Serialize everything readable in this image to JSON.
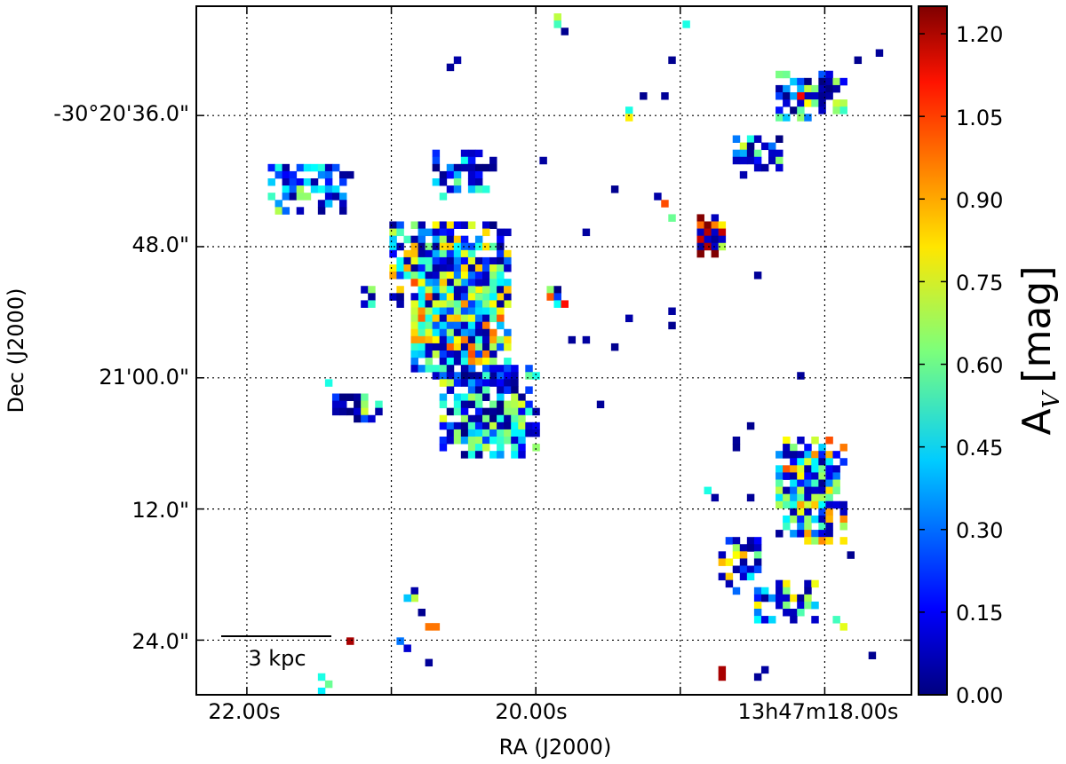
{
  "chart_data": {
    "type": "heatmap",
    "title": "",
    "xlabel": "RA (J2000)",
    "ylabel": "Dec (J2000)",
    "x_tick_labels": [
      "22.00s",
      "20.00s",
      "13h47m18.00s"
    ],
    "y_tick_labels": [
      "-30°20'36.0\"",
      "48.0\"",
      "21'00.0\"",
      "12.0\"",
      "24.0\""
    ],
    "x_grid_values_s": [
      22.0,
      21.0,
      20.0,
      19.0,
      18.0
    ],
    "y_grid_values_arcsec": [
      36.0,
      48.0,
      60.0,
      72.0,
      84.0
    ],
    "x_range_s": [
      22.35,
      17.4
    ],
    "y_range_arcsec": [
      26.0,
      89.0
    ],
    "grid": "dotted",
    "colorbar": {
      "label": "A",
      "label_sub": "V",
      "label_unit": "[mag]",
      "range": [
        0.0,
        1.25
      ],
      "tick_labels": [
        "0.00",
        "0.15",
        "0.30",
        "0.45",
        "0.60",
        "0.75",
        "0.90",
        "1.05",
        "1.20"
      ],
      "colormap": "jet"
    },
    "scale_bar": {
      "label": "3 kpc"
    },
    "map_grid": {
      "cols": 100,
      "rows": 96
    },
    "pixel_regions": [
      {
        "name": "west-clump",
        "col": 10,
        "row": 22,
        "w": 12,
        "h": 7,
        "mean": 0.35,
        "spread": 0.35,
        "fill": 0.65,
        "seed": 11
      },
      {
        "name": "central-north",
        "col": 33,
        "row": 20,
        "w": 9,
        "h": 7,
        "mean": 0.3,
        "spread": 0.35,
        "fill": 0.6,
        "seed": 23
      },
      {
        "name": "main-body-top",
        "col": 27,
        "row": 30,
        "w": 17,
        "h": 12,
        "mean": 0.45,
        "spread": 0.45,
        "fill": 0.85,
        "seed": 37
      },
      {
        "name": "main-body-core",
        "col": 30,
        "row": 38,
        "w": 14,
        "h": 14,
        "mean": 0.6,
        "spread": 0.4,
        "fill": 0.9,
        "seed": 41
      },
      {
        "name": "main-body-south",
        "col": 34,
        "row": 50,
        "w": 14,
        "h": 13,
        "mean": 0.35,
        "spread": 0.4,
        "fill": 0.8,
        "seed": 53
      },
      {
        "name": "west-small",
        "col": 19,
        "row": 54,
        "w": 7,
        "h": 4,
        "mean": 0.4,
        "spread": 0.6,
        "fill": 0.5,
        "seed": 67
      },
      {
        "name": "ne-clump",
        "col": 81,
        "row": 9,
        "w": 10,
        "h": 7,
        "mean": 0.4,
        "spread": 0.5,
        "fill": 0.7,
        "seed": 71
      },
      {
        "name": "ne-clump-2",
        "col": 75,
        "row": 18,
        "w": 7,
        "h": 6,
        "mean": 0.35,
        "spread": 0.4,
        "fill": 0.65,
        "seed": 79
      },
      {
        "name": "red-knot",
        "col": 70,
        "row": 29,
        "w": 4,
        "h": 6,
        "mean": 1.0,
        "spread": 0.4,
        "fill": 0.85,
        "seed": 83
      },
      {
        "name": "se-clump",
        "col": 81,
        "row": 60,
        "w": 10,
        "h": 15,
        "mean": 0.55,
        "spread": 0.45,
        "fill": 0.8,
        "seed": 89
      },
      {
        "name": "s-clump",
        "col": 73,
        "row": 74,
        "w": 6,
        "h": 8,
        "mean": 0.5,
        "spread": 0.5,
        "fill": 0.6,
        "seed": 97
      },
      {
        "name": "s-clump-2",
        "col": 78,
        "row": 80,
        "w": 9,
        "h": 6,
        "mean": 0.45,
        "spread": 0.45,
        "fill": 0.6,
        "seed": 101
      },
      {
        "name": "mid-small",
        "col": 49,
        "row": 39,
        "w": 3,
        "h": 3,
        "mean": 0.5,
        "spread": 0.6,
        "fill": 0.6,
        "seed": 103
      },
      {
        "name": "west-tiny",
        "col": 23,
        "row": 39,
        "w": 3,
        "h": 3,
        "mean": 0.5,
        "spread": 0.6,
        "fill": 0.7,
        "seed": 107
      }
    ],
    "isolated_pixels": [
      {
        "col": 50,
        "row": 1,
        "v": 0.7
      },
      {
        "col": 50,
        "row": 2,
        "v": 0.55
      },
      {
        "col": 51,
        "row": 3,
        "v": 0.02
      },
      {
        "col": 68,
        "row": 2,
        "v": 0.5
      },
      {
        "col": 35,
        "row": 8,
        "v": 0.03
      },
      {
        "col": 36,
        "row": 7,
        "v": 0.05
      },
      {
        "col": 66,
        "row": 7,
        "v": 0.02
      },
      {
        "col": 92,
        "row": 7,
        "v": 0.02
      },
      {
        "col": 95,
        "row": 6,
        "v": 0.03
      },
      {
        "col": 62,
        "row": 12,
        "v": 0.02
      },
      {
        "col": 65,
        "row": 12,
        "v": 0.03
      },
      {
        "col": 60,
        "row": 14,
        "v": 0.5
      },
      {
        "col": 60,
        "row": 15,
        "v": 0.8
      },
      {
        "col": 84,
        "row": 12,
        "v": 1.1
      },
      {
        "col": 48,
        "row": 21,
        "v": 0.04
      },
      {
        "col": 58,
        "row": 25,
        "v": 0.02
      },
      {
        "col": 64,
        "row": 26,
        "v": 0.05
      },
      {
        "col": 65,
        "row": 27,
        "v": 1.0
      },
      {
        "col": 66,
        "row": 29,
        "v": 0.6
      },
      {
        "col": 54,
        "row": 31,
        "v": 0.04
      },
      {
        "col": 78,
        "row": 37,
        "v": 0.03
      },
      {
        "col": 60,
        "row": 43,
        "v": 0.05
      },
      {
        "col": 66,
        "row": 42,
        "v": 0.04
      },
      {
        "col": 66,
        "row": 44,
        "v": 0.02
      },
      {
        "col": 52,
        "row": 46,
        "v": 0.03
      },
      {
        "col": 54,
        "row": 46,
        "v": 0.04
      },
      {
        "col": 58,
        "row": 47,
        "v": 0.02
      },
      {
        "col": 84,
        "row": 51,
        "v": 0.03
      },
      {
        "col": 18,
        "row": 52,
        "v": 0.5
      },
      {
        "col": 56,
        "row": 55,
        "v": 0.03
      },
      {
        "col": 77,
        "row": 58,
        "v": 0.02
      },
      {
        "col": 75,
        "row": 60,
        "v": 0.03
      },
      {
        "col": 75,
        "row": 61,
        "v": 0.02
      },
      {
        "col": 71,
        "row": 67,
        "v": 0.5
      },
      {
        "col": 72,
        "row": 68,
        "v": 0.04
      },
      {
        "col": 77,
        "row": 68,
        "v": 0.03
      },
      {
        "col": 91,
        "row": 76,
        "v": 0.02
      },
      {
        "col": 30,
        "row": 81,
        "v": 0.05
      },
      {
        "col": 30,
        "row": 82,
        "v": 0.7
      },
      {
        "col": 29,
        "row": 82,
        "v": 0.4
      },
      {
        "col": 31,
        "row": 84,
        "v": 0.02
      },
      {
        "col": 33,
        "row": 86,
        "v": 0.95
      },
      {
        "col": 32,
        "row": 86,
        "v": 0.95
      },
      {
        "col": 28,
        "row": 88,
        "v": 0.3
      },
      {
        "col": 21,
        "row": 88,
        "v": 1.2
      },
      {
        "col": 29,
        "row": 89,
        "v": 0.1
      },
      {
        "col": 32,
        "row": 91,
        "v": 0.03
      },
      {
        "col": 89,
        "row": 85,
        "v": 0.55
      },
      {
        "col": 90,
        "row": 86,
        "v": 0.75
      },
      {
        "col": 94,
        "row": 90,
        "v": 0.02
      },
      {
        "col": 73,
        "row": 92,
        "v": 1.2
      },
      {
        "col": 73,
        "row": 93,
        "v": 1.2
      },
      {
        "col": 78,
        "row": 93,
        "v": 0.03
      },
      {
        "col": 79,
        "row": 92,
        "v": 0.04
      },
      {
        "col": 17,
        "row": 93,
        "v": 0.5
      },
      {
        "col": 18,
        "row": 94,
        "v": 0.6
      },
      {
        "col": 17,
        "row": 95,
        "v": 0.45
      }
    ]
  }
}
